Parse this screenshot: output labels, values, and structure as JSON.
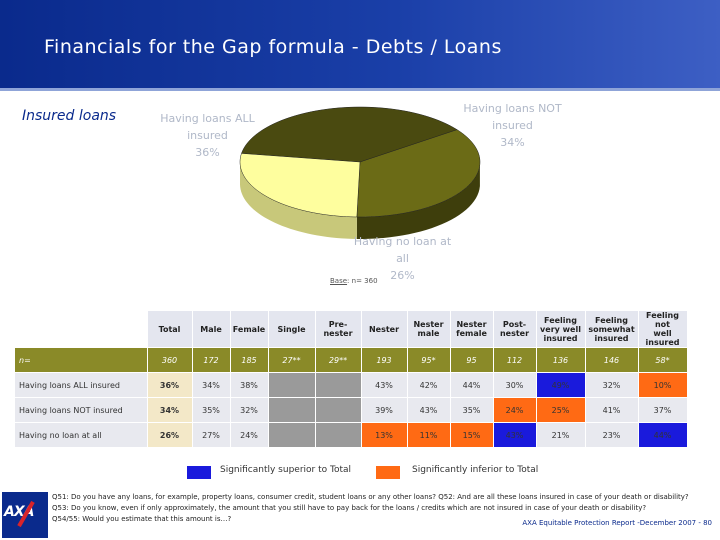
{
  "title": "Financials for the Gap formula - Debts / Loans",
  "side_label": "Insured loans",
  "base_note": {
    "label": "Base",
    "text": ": n= 360"
  },
  "colors": {
    "header": "#0a2a8c",
    "superior": "#1a1adc",
    "inferior": "#ff6a14",
    "pie_all": "#4a4a10",
    "pie_not": "#6b6b16",
    "pie_none": "#fefe9e"
  },
  "chart_data": {
    "type": "pie",
    "slices": [
      {
        "label": "Having loans ALL insured",
        "value": 36
      },
      {
        "label": "Having loans NOT insured",
        "value": 34
      },
      {
        "label": "Having no loan at all",
        "value": 26
      }
    ],
    "pie_labels": {
      "all": [
        "Having loans ALL",
        "insured",
        "36%"
      ],
      "not": [
        "Having loans NOT",
        "insured",
        "34%"
      ],
      "none": [
        "Having no loan at",
        "all",
        "26%"
      ]
    }
  },
  "table": {
    "headers": [
      "Total",
      "Male",
      "Female",
      "Single",
      "Pre-\nnester",
      "Nester",
      "Nester\nmale",
      "Nester\nfemale",
      "Post-\nnester",
      "Feeling\nvery well\ninsured",
      "Feeling\nsomewhat\ninsured",
      "Feeling not\nwell\ninsured"
    ],
    "n_row": {
      "label": "n=",
      "values": [
        "360",
        "172",
        "185",
        "27**",
        "29**",
        "193",
        "95*",
        "95",
        "112",
        "136",
        "146",
        "58*"
      ]
    },
    "rows": [
      {
        "label": "Having loans ALL insured",
        "values": [
          "36%",
          "34%",
          "38%",
          "",
          "",
          "43%",
          "42%",
          "44%",
          "30%",
          "49%",
          "32%",
          "10%"
        ],
        "marks": [
          "tot",
          "",
          "",
          "grey",
          "grey",
          "",
          "",
          "",
          "",
          "sup",
          "",
          "inf"
        ]
      },
      {
        "label": "Having loans NOT insured",
        "values": [
          "34%",
          "35%",
          "32%",
          "",
          "",
          "39%",
          "43%",
          "35%",
          "24%",
          "25%",
          "41%",
          "37%"
        ],
        "marks": [
          "tot",
          "",
          "",
          "grey",
          "grey",
          "",
          "",
          "",
          "inf",
          "inf",
          "",
          ""
        ]
      },
      {
        "label": "Having no loan at all",
        "values": [
          "26%",
          "27%",
          "24%",
          "",
          "",
          "13%",
          "11%",
          "15%",
          "43%",
          "21%",
          "23%",
          "44%"
        ],
        "marks": [
          "tot",
          "",
          "",
          "grey",
          "grey",
          "inf",
          "inf",
          "inf",
          "sup",
          "",
          "",
          "sup"
        ]
      }
    ]
  },
  "legend": {
    "superior": "Significantly superior to Total",
    "inferior": "Significantly inferior to Total"
  },
  "notes": [
    "Q51: Do you have any loans, for example, property loans, consumer credit, student loans or any other loans? Q52: And are all these loans insured in case of your death or disability?",
    "Q53: Do you know, even if only approximately, the amount that you still have to pay back for the loans / credits which are not insured in case of your death or disability?",
    "Q54/55: Would you estimate that this amount is…?"
  ],
  "source": "AXA Equitable Protection Report -December 2007 - 80",
  "logo_text": "AXA"
}
